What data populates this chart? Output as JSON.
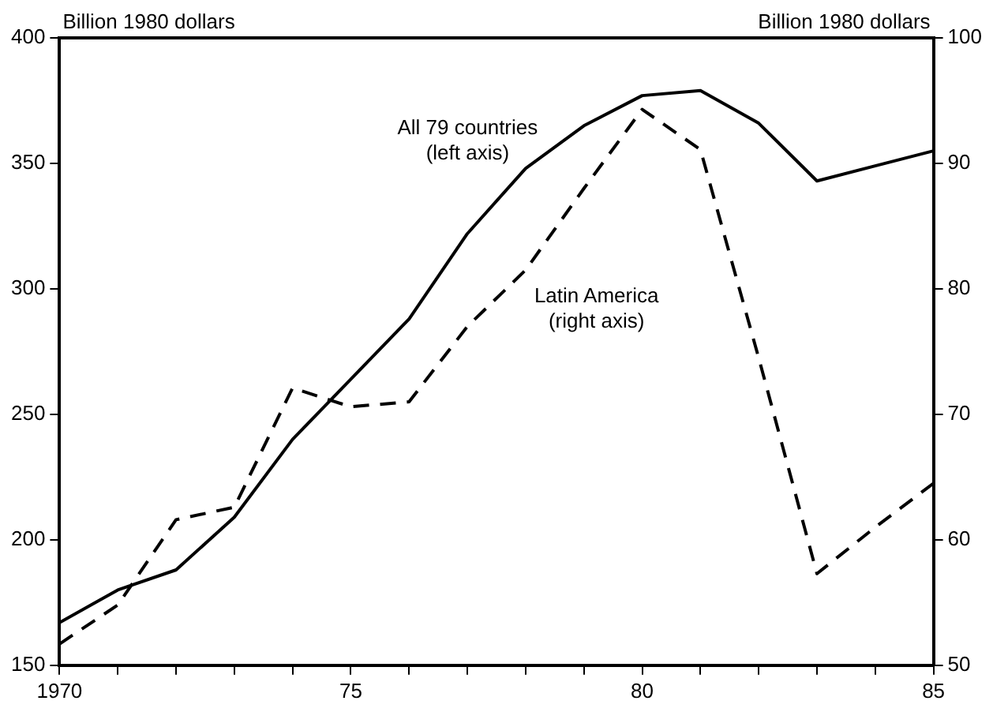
{
  "chart_data": {
    "type": "line",
    "ylabel": "Billion 1980 dollars",
    "y2label": "Billion 1980 dollars",
    "x": [
      1970,
      1971,
      1972,
      1973,
      1974,
      1975,
      1976,
      1977,
      1978,
      1979,
      1980,
      1981,
      1982,
      1983,
      1984,
      1985
    ],
    "xlim": [
      1970,
      1985
    ],
    "xticks": [
      {
        "value": 1970,
        "label": "1970"
      },
      {
        "value": 1971,
        "label": null
      },
      {
        "value": 1972,
        "label": null
      },
      {
        "value": 1973,
        "label": null
      },
      {
        "value": 1974,
        "label": null
      },
      {
        "value": 1975,
        "label": "75"
      },
      {
        "value": 1976,
        "label": null
      },
      {
        "value": 1977,
        "label": null
      },
      {
        "value": 1978,
        "label": null
      },
      {
        "value": 1979,
        "label": null
      },
      {
        "value": 1980,
        "label": "80"
      },
      {
        "value": 1981,
        "label": null
      },
      {
        "value": 1982,
        "label": null
      },
      {
        "value": 1983,
        "label": null
      },
      {
        "value": 1984,
        "label": null
      },
      {
        "value": 1985,
        "label": "85"
      }
    ],
    "ylim": [
      150,
      400
    ],
    "yticks": [
      150,
      200,
      250,
      300,
      350,
      400
    ],
    "y2lim": [
      50,
      100
    ],
    "y2ticks": [
      50,
      60,
      70,
      80,
      90,
      100
    ],
    "series": [
      {
        "name": "All 79 countries (left axis)",
        "color": "#000000",
        "line_style": "solid",
        "values": [
          167,
          180,
          188,
          209,
          240,
          264,
          288,
          322,
          348,
          365,
          377,
          379,
          366,
          343,
          349,
          355
        ]
      },
      {
        "name": "Latin America (right axis)",
        "color": "#000000",
        "line_style": "dashed",
        "axis": "y2",
        "values": [
          51.7,
          54.8,
          61.6,
          62.6,
          72.1,
          70.6,
          71,
          77,
          81.5,
          88,
          94.3,
          91.1,
          74.5,
          57.3,
          61,
          64.5
        ]
      }
    ],
    "grid": false,
    "legend": false,
    "marker": "none"
  }
}
